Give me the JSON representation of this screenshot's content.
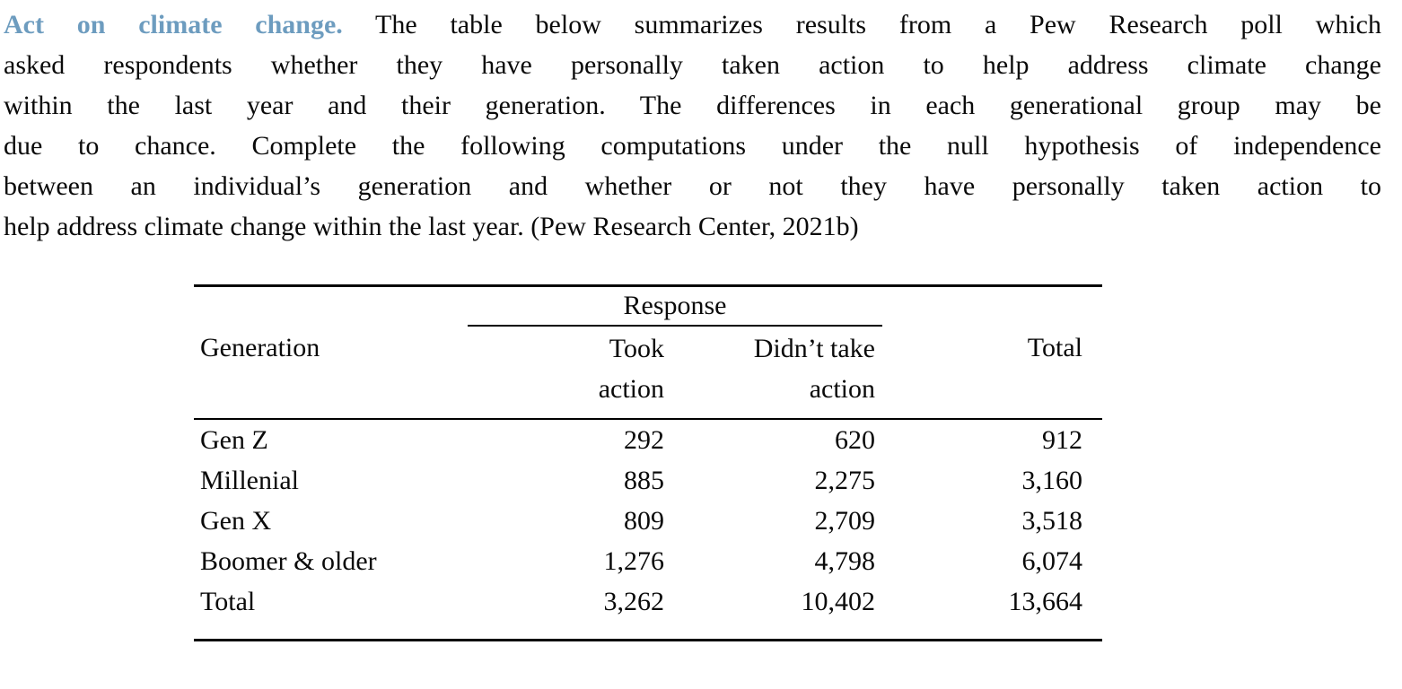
{
  "page": {
    "background": "#ffffff",
    "text_color": "#0a0a0a",
    "accent_blue": "#6d9cbf"
  },
  "exercise": {
    "title": "Act on climate change.",
    "lines": [
      "The table below summarizes results from a Pew Research poll which",
      "asked respondents whether they have personally taken action to help address climate change",
      "within the last year and their generation. The differences in each generational group may be",
      "due to chance. Complete the following computations under the null hypothesis of independence",
      "between an individual’s generation and whether or not they have personally taken action to",
      "help address climate change within the last year. (Pew Research Center, 2021b)"
    ]
  },
  "table": {
    "span_header": "Response",
    "headers": {
      "generation": "Generation",
      "took_line1": "Took",
      "took_line2": "action",
      "didnt_line1": "Didn’t take",
      "didnt_line2": "action",
      "total": "Total"
    },
    "rows": [
      {
        "generation": "Gen Z",
        "took": "292",
        "didnt": "620",
        "total": "912"
      },
      {
        "generation": "Millenial",
        "took": "885",
        "didnt": "2,275",
        "total": "3,160"
      },
      {
        "generation": "Gen X",
        "took": "809",
        "didnt": "2,709",
        "total": "3,518"
      },
      {
        "generation": "Boomer & older",
        "took": "1,276",
        "didnt": "4,798",
        "total": "6,074"
      },
      {
        "generation": "Total",
        "took": "3,262",
        "didnt": "10,402",
        "total": "13,664"
      }
    ]
  }
}
